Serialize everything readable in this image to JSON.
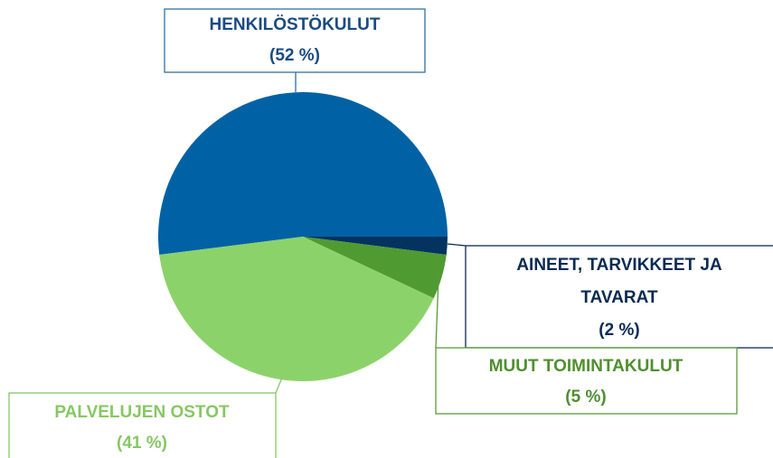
{
  "chart_data": {
    "type": "pie",
    "categories": [
      "HENKILÖSTÖKULUT",
      "AINEET, TARVIKKEET JA TAVARAT",
      "MUUT TOIMINTAKULUT",
      "PALVELUJEN OSTOT"
    ],
    "values": [
      52,
      2,
      5,
      41
    ],
    "value_labels": [
      "(52 %)",
      "(2 %)",
      "(5 %)",
      "(41 %)"
    ],
    "colors": [
      "#0062a4",
      "#05335f",
      "#4f9b32",
      "#8cd26b"
    ]
  }
}
